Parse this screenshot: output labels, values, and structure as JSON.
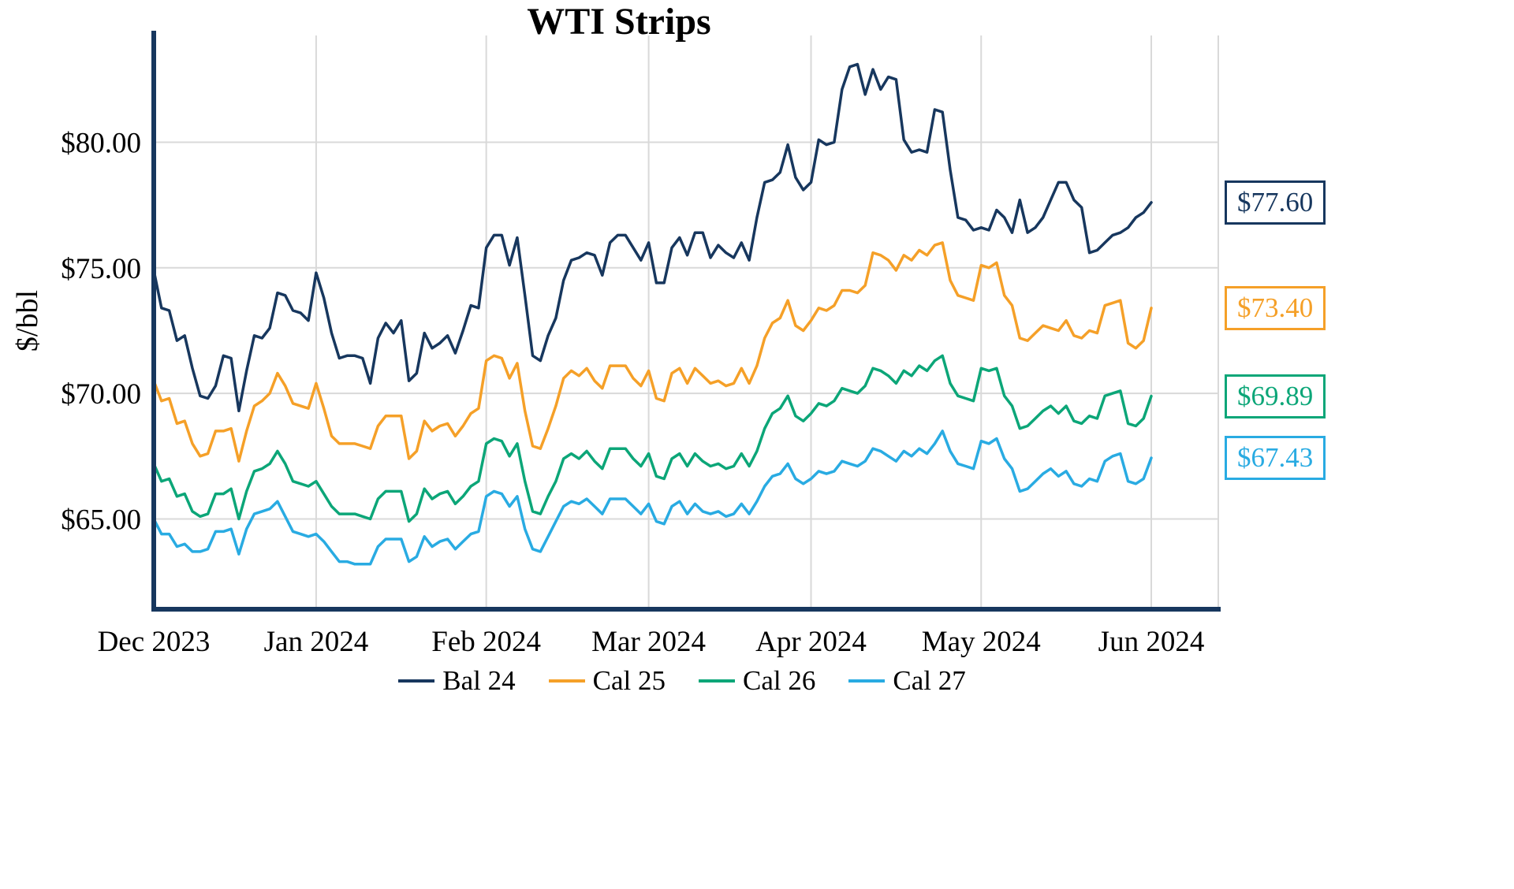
{
  "title": "WTI Strips",
  "chart_data": {
    "type": "line",
    "title": "WTI Strips",
    "ylabel": "$/bbl",
    "xlabel": "",
    "grid": true,
    "legend_position": "bottom",
    "axis_color": "#17375E",
    "grid_color": "#D9D9D9",
    "ylim": [
      61.5,
      84.25
    ],
    "y_ticks": [
      65,
      70,
      75,
      80
    ],
    "y_tick_labels": [
      "$65.00",
      "$70.00",
      "$75.00",
      "$80.00"
    ],
    "x_tick_labels": [
      "Dec 2023",
      "Jan 2024",
      "Feb 2024",
      "Mar 2024",
      "Apr 2024",
      "May 2024",
      "Jun 2024"
    ],
    "x_tick_positions": [
      0,
      21,
      43,
      64,
      85,
      107,
      129
    ],
    "series": [
      {
        "name": "Bal 24",
        "color": "#17375E",
        "end_label": "$77.60",
        "values": [
          74.9,
          73.4,
          73.3,
          72.1,
          72.3,
          71.0,
          69.9,
          69.8,
          70.3,
          71.5,
          71.4,
          69.3,
          70.9,
          72.3,
          72.2,
          72.6,
          74.0,
          73.9,
          73.3,
          73.2,
          72.9,
          74.8,
          73.8,
          72.4,
          71.4,
          71.5,
          71.5,
          71.4,
          70.4,
          72.2,
          72.8,
          72.4,
          72.9,
          70.5,
          70.8,
          72.4,
          71.8,
          72.0,
          72.3,
          71.6,
          72.5,
          73.5,
          73.4,
          75.8,
          76.3,
          76.3,
          75.1,
          76.2,
          73.9,
          71.5,
          71.3,
          72.3,
          73.0,
          74.5,
          75.3,
          75.4,
          75.6,
          75.5,
          74.7,
          76.0,
          76.3,
          76.3,
          75.8,
          75.3,
          76.0,
          74.4,
          74.4,
          75.8,
          76.2,
          75.5,
          76.4,
          76.4,
          75.4,
          75.9,
          75.6,
          75.4,
          76.0,
          75.3,
          77.0,
          78.4,
          78.5,
          78.8,
          79.9,
          78.6,
          78.1,
          78.4,
          80.1,
          79.9,
          80.0,
          82.1,
          83.0,
          83.1,
          81.9,
          82.9,
          82.1,
          82.6,
          82.5,
          80.1,
          79.6,
          79.7,
          79.6,
          81.3,
          81.2,
          78.9,
          77.0,
          76.9,
          76.5,
          76.6,
          76.5,
          77.3,
          77.0,
          76.4,
          77.7,
          76.4,
          76.6,
          77.0,
          77.7,
          78.4,
          78.4,
          77.7,
          77.4,
          75.6,
          75.7,
          76.0,
          76.3,
          76.4,
          76.6,
          77.0,
          77.2,
          77.6
        ]
      },
      {
        "name": "Cal 25",
        "color": "#F5A028",
        "end_label": "$73.40",
        "values": [
          70.5,
          69.7,
          69.8,
          68.8,
          68.9,
          68.0,
          67.5,
          67.6,
          68.5,
          68.5,
          68.6,
          67.3,
          68.5,
          69.5,
          69.7,
          70.0,
          70.8,
          70.3,
          69.6,
          69.5,
          69.4,
          70.4,
          69.4,
          68.3,
          68.0,
          68.0,
          68.0,
          67.9,
          67.8,
          68.7,
          69.1,
          69.1,
          69.1,
          67.4,
          67.7,
          68.9,
          68.5,
          68.7,
          68.8,
          68.3,
          68.7,
          69.2,
          69.4,
          71.3,
          71.5,
          71.4,
          70.6,
          71.2,
          69.3,
          67.9,
          67.8,
          68.6,
          69.5,
          70.6,
          70.9,
          70.7,
          71.0,
          70.5,
          70.2,
          71.1,
          71.1,
          71.1,
          70.6,
          70.3,
          70.9,
          69.8,
          69.7,
          70.8,
          71.0,
          70.4,
          71.0,
          70.7,
          70.4,
          70.5,
          70.3,
          70.4,
          71.0,
          70.4,
          71.1,
          72.2,
          72.8,
          73.0,
          73.7,
          72.7,
          72.5,
          72.9,
          73.4,
          73.3,
          73.5,
          74.1,
          74.1,
          74.0,
          74.3,
          75.6,
          75.5,
          75.3,
          74.9,
          75.5,
          75.3,
          75.7,
          75.5,
          75.9,
          76.0,
          74.5,
          73.9,
          73.8,
          73.7,
          75.1,
          75.0,
          75.2,
          73.9,
          73.5,
          72.2,
          72.1,
          72.4,
          72.7,
          72.6,
          72.5,
          72.9,
          72.3,
          72.2,
          72.5,
          72.4,
          73.5,
          73.6,
          73.7,
          72.0,
          71.8,
          72.1,
          73.4
        ]
      },
      {
        "name": "Cal 26",
        "color": "#0CA678",
        "end_label": "$69.89",
        "values": [
          67.2,
          66.5,
          66.6,
          65.9,
          66.0,
          65.3,
          65.1,
          65.2,
          66.0,
          66.0,
          66.2,
          65.0,
          66.1,
          66.9,
          67.0,
          67.2,
          67.7,
          67.2,
          66.5,
          66.4,
          66.3,
          66.5,
          66.0,
          65.5,
          65.2,
          65.2,
          65.2,
          65.1,
          65.0,
          65.8,
          66.1,
          66.1,
          66.1,
          64.9,
          65.2,
          66.2,
          65.8,
          66.0,
          66.1,
          65.6,
          65.9,
          66.3,
          66.5,
          68.0,
          68.2,
          68.1,
          67.5,
          68.0,
          66.5,
          65.3,
          65.2,
          65.9,
          66.5,
          67.4,
          67.6,
          67.4,
          67.7,
          67.3,
          67.0,
          67.8,
          67.8,
          67.8,
          67.4,
          67.1,
          67.6,
          66.7,
          66.6,
          67.4,
          67.6,
          67.1,
          67.6,
          67.3,
          67.1,
          67.2,
          67.0,
          67.1,
          67.6,
          67.1,
          67.7,
          68.6,
          69.2,
          69.4,
          69.9,
          69.1,
          68.9,
          69.2,
          69.6,
          69.5,
          69.7,
          70.2,
          70.1,
          70.0,
          70.3,
          71.0,
          70.9,
          70.7,
          70.4,
          70.9,
          70.7,
          71.1,
          70.9,
          71.3,
          71.5,
          70.4,
          69.9,
          69.8,
          69.7,
          71.0,
          70.9,
          71.0,
          69.9,
          69.5,
          68.6,
          68.7,
          69.0,
          69.3,
          69.5,
          69.2,
          69.5,
          68.9,
          68.8,
          69.1,
          69.0,
          69.9,
          70.0,
          70.1,
          68.8,
          68.7,
          69.0,
          69.89
        ]
      },
      {
        "name": "Cal 27",
        "color": "#29ABE2",
        "end_label": "$67.43",
        "values": [
          65.0,
          64.4,
          64.4,
          63.9,
          64.0,
          63.7,
          63.7,
          63.8,
          64.5,
          64.5,
          64.6,
          63.6,
          64.6,
          65.2,
          65.3,
          65.4,
          65.7,
          65.1,
          64.5,
          64.4,
          64.3,
          64.4,
          64.1,
          63.7,
          63.3,
          63.3,
          63.2,
          63.2,
          63.2,
          63.9,
          64.2,
          64.2,
          64.2,
          63.3,
          63.5,
          64.3,
          63.9,
          64.1,
          64.2,
          63.8,
          64.1,
          64.4,
          64.5,
          65.9,
          66.1,
          66.0,
          65.5,
          65.9,
          64.6,
          63.8,
          63.7,
          64.3,
          64.9,
          65.5,
          65.7,
          65.6,
          65.8,
          65.5,
          65.2,
          65.8,
          65.8,
          65.8,
          65.5,
          65.2,
          65.6,
          64.9,
          64.8,
          65.5,
          65.7,
          65.2,
          65.6,
          65.3,
          65.2,
          65.3,
          65.1,
          65.2,
          65.6,
          65.2,
          65.7,
          66.3,
          66.7,
          66.8,
          67.2,
          66.6,
          66.4,
          66.6,
          66.9,
          66.8,
          66.9,
          67.3,
          67.2,
          67.1,
          67.3,
          67.8,
          67.7,
          67.5,
          67.3,
          67.7,
          67.5,
          67.8,
          67.6,
          68.0,
          68.5,
          67.7,
          67.2,
          67.1,
          67.0,
          68.1,
          68.0,
          68.2,
          67.4,
          67.0,
          66.1,
          66.2,
          66.5,
          66.8,
          67.0,
          66.7,
          66.9,
          66.4,
          66.3,
          66.6,
          66.5,
          67.3,
          67.5,
          67.6,
          66.5,
          66.4,
          66.6,
          67.43
        ]
      }
    ]
  }
}
